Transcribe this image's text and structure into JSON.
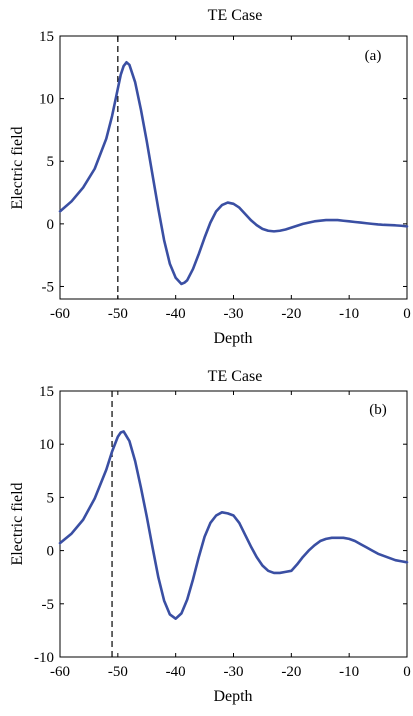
{
  "chart_data": [
    {
      "type": "line",
      "title": "TE Case",
      "panel_label": "(a)",
      "xlabel": "Depth",
      "ylabel": "Electric field",
      "xlim": [
        -60,
        0
      ],
      "ylim": [
        -6,
        15
      ],
      "xticks": [
        -60,
        -50,
        -40,
        -30,
        -20,
        -10,
        0
      ],
      "yticks": [
        -5,
        0,
        5,
        10,
        15
      ],
      "xtick_labels": [
        "-60",
        "-50",
        "-40",
        "-30",
        "-20",
        "-10",
        "0"
      ],
      "ytick_labels": [
        "-5",
        "0",
        "5",
        "10",
        "15"
      ],
      "vline_x": -50,
      "grid": false,
      "line_color": "#3a4fa3",
      "series": [
        {
          "x": [
            -60,
            -58,
            -56,
            -54,
            -52,
            -51,
            -50,
            -49.5,
            -49,
            -48.5,
            -48,
            -47,
            -46,
            -45,
            -44,
            -43,
            -42,
            -41,
            -40,
            -39,
            -38.5,
            -38,
            -37,
            -36,
            -35,
            -34,
            -33,
            -32,
            -31,
            -30,
            -29,
            -28,
            -27,
            -26,
            -25,
            -24,
            -23,
            -22,
            -21,
            -20,
            -19,
            -18,
            -17,
            -16,
            -15,
            -14,
            -13,
            -12,
            -11,
            -10,
            -9,
            -8,
            -7,
            -6,
            -5,
            -4,
            -3,
            -2,
            -1,
            0
          ],
          "y": [
            1.0,
            1.8,
            2.9,
            4.4,
            6.8,
            8.6,
            10.8,
            11.9,
            12.6,
            12.9,
            12.7,
            11.3,
            9.1,
            6.6,
            3.9,
            1.2,
            -1.3,
            -3.2,
            -4.3,
            -4.8,
            -4.7,
            -4.5,
            -3.6,
            -2.4,
            -1.1,
            0.1,
            1.0,
            1.5,
            1.7,
            1.6,
            1.3,
            0.8,
            0.3,
            -0.1,
            -0.4,
            -0.55,
            -0.6,
            -0.55,
            -0.45,
            -0.3,
            -0.15,
            0.0,
            0.1,
            0.2,
            0.25,
            0.3,
            0.3,
            0.3,
            0.25,
            0.2,
            0.15,
            0.1,
            0.05,
            0.0,
            -0.05,
            -0.08,
            -0.1,
            -0.12,
            -0.15,
            -0.2
          ]
        }
      ]
    },
    {
      "type": "line",
      "title": "TE Case",
      "panel_label": "(b)",
      "xlabel": "Depth",
      "ylabel": "Electric field",
      "xlim": [
        -60,
        0
      ],
      "ylim": [
        -10,
        15
      ],
      "xticks": [
        -60,
        -50,
        -40,
        -30,
        -20,
        -10,
        0
      ],
      "yticks": [
        -10,
        -5,
        0,
        5,
        10,
        15
      ],
      "xtick_labels": [
        "-60",
        "-50",
        "-40",
        "-30",
        "-20",
        "-10",
        "0"
      ],
      "ytick_labels": [
        "-10",
        "-5",
        "0",
        "5",
        "10",
        "15"
      ],
      "vline_x": -51,
      "grid": false,
      "line_color": "#3a4fa3",
      "series": [
        {
          "x": [
            -60,
            -58,
            -56,
            -54,
            -52,
            -51,
            -50,
            -49.5,
            -49,
            -48,
            -47,
            -46,
            -45,
            -44,
            -43,
            -42,
            -41,
            -40,
            -39,
            -38,
            -37,
            -36,
            -35,
            -34,
            -33,
            -32,
            -31,
            -30,
            -29,
            -28,
            -27,
            -26,
            -25,
            -24,
            -23,
            -22,
            -21,
            -20,
            -19,
            -18,
            -17,
            -16,
            -15,
            -14,
            -13,
            -12,
            -11,
            -10,
            -9,
            -8,
            -7,
            -6,
            -5,
            -4,
            -3,
            -2,
            -1,
            0
          ],
          "y": [
            0.7,
            1.6,
            2.9,
            4.9,
            7.6,
            9.3,
            10.7,
            11.1,
            11.2,
            10.3,
            8.4,
            5.9,
            3.2,
            0.3,
            -2.5,
            -4.7,
            -6.0,
            -6.4,
            -5.9,
            -4.6,
            -2.7,
            -0.6,
            1.3,
            2.6,
            3.3,
            3.6,
            3.5,
            3.3,
            2.6,
            1.5,
            0.4,
            -0.6,
            -1.4,
            -1.9,
            -2.1,
            -2.1,
            -2.0,
            -1.9,
            -1.3,
            -0.6,
            0.0,
            0.5,
            0.9,
            1.1,
            1.2,
            1.2,
            1.2,
            1.1,
            0.9,
            0.6,
            0.3,
            0.0,
            -0.3,
            -0.5,
            -0.7,
            -0.9,
            -1.0,
            -1.1
          ]
        }
      ]
    }
  ]
}
